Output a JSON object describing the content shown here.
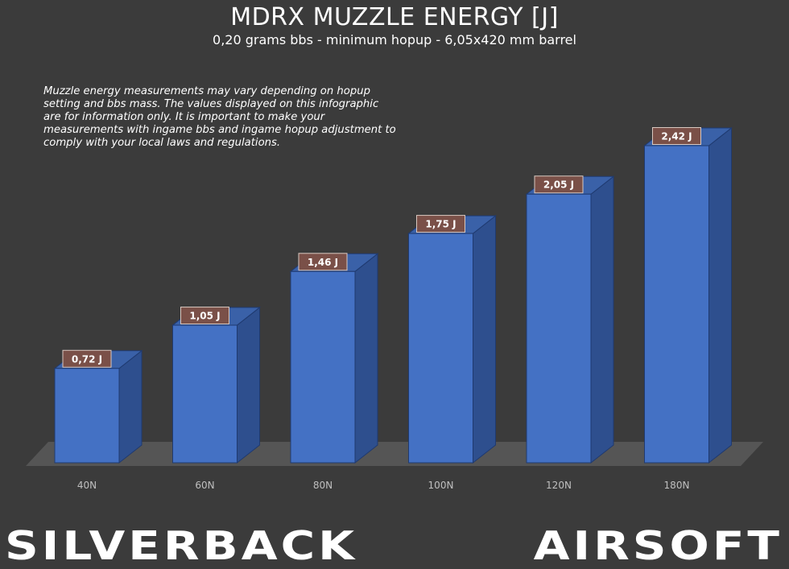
{
  "header": {
    "title": "MDRX MUZZLE ENERGY [J]",
    "subtitle": "0,20 grams bbs - minimum hopup - 6,05x420 mm barrel"
  },
  "disclaimer": "Muzzle energy measurements may vary depending on hopup setting and bbs mass. The values displayed on this infographic are for information only. It is important to make your measurements with ingame bbs and ingame hopup adjustment to comply with your local laws and regulations.",
  "brand": {
    "word1": "SILVERBACK",
    "word2": "AIRSOFT"
  },
  "colors": {
    "background": "#3b3b3b",
    "bar_front": "#4471c4",
    "bar_side": "#2e4f8e",
    "bar_top": "#3a61a8",
    "label_box": "#7a5048",
    "floor": "#555555"
  },
  "chart_data": {
    "type": "bar",
    "style": "3d-column",
    "categories": [
      "40N",
      "60N",
      "80N",
      "100N",
      "120N",
      "180N"
    ],
    "values": [
      0.72,
      1.05,
      1.46,
      1.75,
      2.05,
      2.42
    ],
    "data_labels": [
      "0,72 J",
      "1,05 J",
      "1,46 J",
      "1,75 J",
      "2,05 J",
      "2,42 J"
    ],
    "title": "MDRX MUZZLE ENERGY [J]",
    "xlabel": "",
    "ylabel": "",
    "ylim": [
      0,
      2.42
    ],
    "grid": false,
    "legend": "none"
  }
}
